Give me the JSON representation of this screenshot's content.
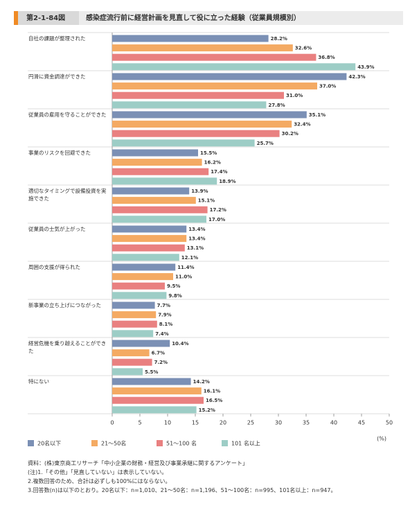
{
  "header": {
    "figure_label": "第2-1-84図",
    "title": "感染症流行前に経営計画を見直して役に立った経験（従業員規模別）"
  },
  "chart_data": {
    "type": "bar",
    "orientation": "horizontal",
    "categories": [
      "自社の課題が整理された",
      "円滑に資金調達ができた",
      "従業員の雇用を守ることができた",
      "事業のリスクを回避できた",
      "適切なタイミングで設備投資を実施できた",
      "従業員の士気が上がった",
      "周囲の支援が得られた",
      "新事業の立ち上げにつながった",
      "経営危機を乗り越えることができた",
      "特にない"
    ],
    "series": [
      {
        "name": "20名以下",
        "color": "#7b90b5",
        "values": [
          28.2,
          42.3,
          35.1,
          15.5,
          13.9,
          13.4,
          11.4,
          7.7,
          10.4,
          14.2
        ],
        "value_labels": [
          "28.2%",
          "42.3%",
          "35.1%",
          "15.5%",
          "13.9%",
          "13.4%",
          "11.4%",
          "7.7%",
          "10.4%",
          "14.2%"
        ]
      },
      {
        "name": "21～50名",
        "color": "#f4aa63",
        "values": [
          32.6,
          37.0,
          32.4,
          16.2,
          15.1,
          13.4,
          11.0,
          7.9,
          6.7,
          16.1
        ],
        "value_labels": [
          "32.6%",
          "37.0%",
          "32.4%",
          "16.2%",
          "15.1%",
          "13.4%",
          "11.0%",
          "7.9%",
          "6.7%",
          "16.1%"
        ]
      },
      {
        "name": "51～100 名",
        "color": "#e98080",
        "values": [
          36.8,
          31.0,
          30.2,
          17.4,
          17.2,
          13.1,
          9.5,
          8.1,
          7.2,
          16.5
        ],
        "value_labels": [
          "36.8%",
          "31.0%",
          "30.2%",
          "17.4%",
          "17.2%",
          "13.1%",
          "9.5%",
          "8.1%",
          "7.2%",
          "16.5%"
        ]
      },
      {
        "name": "101 名以上",
        "color": "#9dcdc6",
        "values": [
          43.9,
          27.8,
          25.7,
          18.9,
          17.0,
          12.1,
          9.8,
          7.4,
          5.5,
          15.2
        ],
        "value_labels": [
          "43.9%",
          "27.8%",
          "25.7%",
          "18.9%",
          "17.0%",
          "12.1%",
          "9.8%",
          "7.4%",
          "5.5%",
          "15.2%"
        ]
      }
    ],
    "xlim": [
      0,
      50
    ],
    "xticks": [
      0,
      5,
      10,
      15,
      20,
      25,
      30,
      35,
      40,
      45,
      50
    ],
    "x_unit": "(%)"
  },
  "notes": [
    "資料：(株)東京商工リサーチ「中小企業の財務・経営及び事業承継に関するアンケート」",
    "(注)1.「その他」「見直していない」は表示していない。",
    "2.複数回答のため、合計は必ずしも100%にはならない。",
    "3.回答数(n)は以下のとおり。20名以下：n=1,010、21～50名：n=1,196、51～100名：n=995、101名以上：n=947。"
  ]
}
